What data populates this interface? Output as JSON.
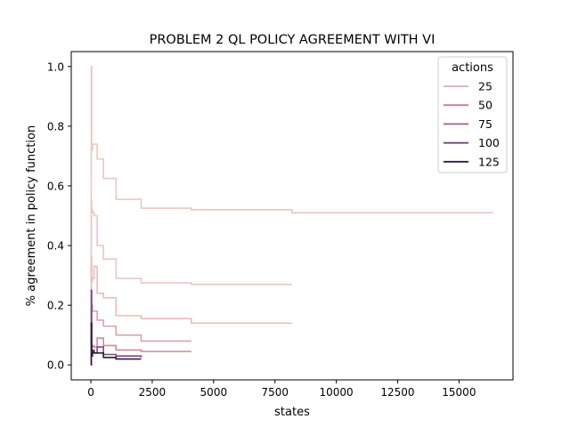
{
  "chart_data": {
    "type": "line",
    "title": "PROBLEM 2 QL POLICY AGREEMENT WITH VI",
    "xlabel": "states",
    "ylabel": "% agreement in policy function",
    "xlim": [
      -800,
      17200
    ],
    "ylim": [
      -0.05,
      1.05
    ],
    "xticks": [
      0,
      2500,
      5000,
      7500,
      10000,
      12500,
      15000
    ],
    "yticks": [
      0.0,
      0.2,
      0.4,
      0.6,
      0.8,
      1.0
    ],
    "xtick_labels": [
      "0",
      "2500",
      "5000",
      "7500",
      "10000",
      "12500",
      "15000"
    ],
    "ytick_labels": [
      "0.0",
      "0.2",
      "0.4",
      "0.6",
      "0.8",
      "1.0"
    ],
    "grid": false,
    "line_style": "step",
    "legend": {
      "title": "actions",
      "placement": "top-right"
    },
    "series": [
      {
        "name": "25",
        "color": "#ebc7c2",
        "legend_color": "#e0aeb1",
        "points": [
          [
            0,
            0.25
          ],
          [
            16,
            1.0
          ],
          [
            32,
            0.72
          ],
          [
            64,
            0.74
          ],
          [
            128,
            0.74
          ],
          [
            256,
            0.69
          ],
          [
            512,
            0.625
          ],
          [
            1024,
            0.555
          ],
          [
            2048,
            0.525
          ],
          [
            4096,
            0.52
          ],
          [
            8192,
            0.51
          ],
          [
            16384,
            0.51
          ]
        ]
      },
      {
        "name": "25",
        "color": "#ebc7c2",
        "legend": false,
        "points": [
          [
            0,
            0.05
          ],
          [
            16,
            0.55
          ],
          [
            32,
            0.52
          ],
          [
            64,
            0.51
          ],
          [
            128,
            0.5
          ],
          [
            256,
            0.4
          ],
          [
            512,
            0.355
          ],
          [
            1024,
            0.29
          ],
          [
            2048,
            0.275
          ],
          [
            4096,
            0.27
          ],
          [
            8192,
            0.27
          ]
        ]
      },
      {
        "name": "50",
        "color": "#e7bdbb",
        "legend_color": "#c67b99",
        "points": [
          [
            0,
            0.05
          ],
          [
            16,
            0.36
          ],
          [
            32,
            0.28
          ],
          [
            64,
            0.29
          ],
          [
            128,
            0.33
          ],
          [
            256,
            0.24
          ],
          [
            512,
            0.225
          ],
          [
            1024,
            0.165
          ],
          [
            2048,
            0.155
          ],
          [
            4096,
            0.14
          ],
          [
            8192,
            0.14
          ]
        ]
      },
      {
        "name": "75",
        "color": "#d9a3ab",
        "legend_color": "#a75b8c",
        "points": [
          [
            0,
            0.02
          ],
          [
            16,
            0.19
          ],
          [
            32,
            0.2
          ],
          [
            64,
            0.18
          ],
          [
            128,
            0.18
          ],
          [
            256,
            0.15
          ],
          [
            512,
            0.13
          ],
          [
            1024,
            0.1
          ],
          [
            2048,
            0.08
          ],
          [
            4096,
            0.08
          ]
        ]
      },
      {
        "name": "100",
        "color": "#c98a9f",
        "legend_color": "#6c3473",
        "points": [
          [
            0,
            0.0
          ],
          [
            16,
            0.08
          ],
          [
            32,
            0.06
          ],
          [
            64,
            0.065
          ],
          [
            128,
            0.06
          ],
          [
            256,
            0.09
          ],
          [
            512,
            0.065
          ],
          [
            1024,
            0.05
          ],
          [
            2048,
            0.045
          ],
          [
            4096,
            0.045
          ]
        ]
      },
      {
        "name": "125",
        "color": "#7d477f",
        "legend_color": "#2b1d3d",
        "points": [
          [
            0,
            0.0
          ],
          [
            16,
            0.25
          ],
          [
            32,
            0.04
          ],
          [
            64,
            0.05
          ],
          [
            128,
            0.04
          ],
          [
            256,
            0.06
          ],
          [
            512,
            0.035
          ],
          [
            1024,
            0.03
          ],
          [
            2048,
            0.025
          ]
        ]
      },
      {
        "name": "125",
        "color": "#2b1d3d",
        "legend": false,
        "points": [
          [
            0,
            0.0
          ],
          [
            16,
            0.14
          ],
          [
            32,
            0.03
          ],
          [
            64,
            0.045
          ],
          [
            128,
            0.04
          ],
          [
            256,
            0.04
          ],
          [
            512,
            0.025
          ],
          [
            1024,
            0.02
          ],
          [
            2048,
            0.02
          ]
        ]
      }
    ]
  }
}
